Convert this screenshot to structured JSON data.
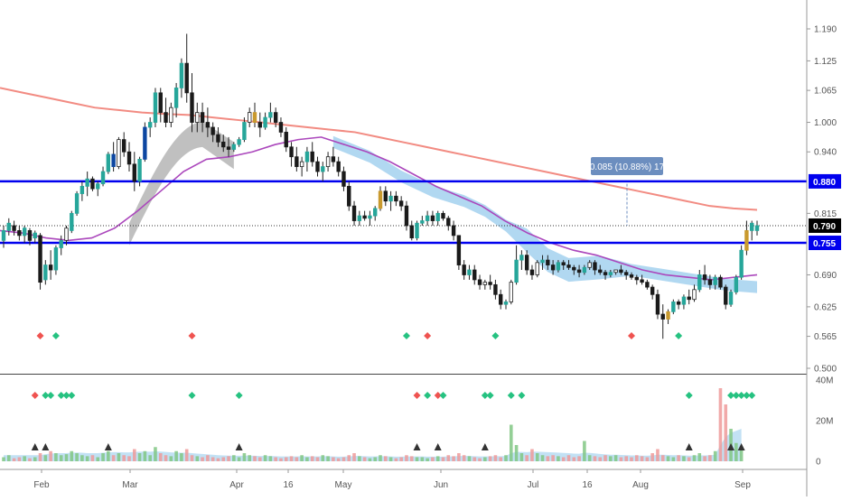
{
  "colors": {
    "up": "#26a69a",
    "down": "#1a1a1a",
    "accent_up": "#0d47a1",
    "bronze": "#c99a2e",
    "level_line": "#0000ee",
    "ma_long": "#f28b82",
    "ma_mid": "#ab47bc",
    "ribbon_grey": "#b5b5b5",
    "ribbon_blue": "#a8d4f0",
    "signal_red": "#ef5350",
    "signal_green": "#26c281",
    "label_bg": "#6c8ebf",
    "last_price_bg": "#000000"
  },
  "chart_data": {
    "type": "candlestick",
    "price_axis": {
      "ticks": [
        "1.190",
        "1.125",
        "1.065",
        "1.000",
        "0.940",
        "0.880",
        "0.815",
        "0.790",
        "0.755",
        "0.690",
        "0.625",
        "0.565",
        "0.500"
      ],
      "ylim": [
        0.5,
        1.2
      ]
    },
    "volume_axis": {
      "ticks": [
        "40M",
        "20M",
        "0"
      ],
      "ylim": [
        0,
        40
      ]
    },
    "time_axis": {
      "ticks": [
        "Feb",
        "Mar",
        "Apr",
        "16",
        "May",
        "Jun",
        "Jul",
        "16",
        "Aug",
        "Sep"
      ]
    },
    "horizontal_levels": [
      {
        "value": 0.88,
        "label": "0.880"
      },
      {
        "value": 0.755,
        "label": "0.755"
      }
    ],
    "last_price": {
      "value": 0.79,
      "label": "0.790"
    },
    "measure_label": "0.085 (10.88%) 17",
    "ohlc": [
      [
        0.76,
        0.79,
        0.745,
        0.78
      ],
      [
        0.78,
        0.805,
        0.77,
        0.795
      ],
      [
        0.79,
        0.8,
        0.77,
        0.78
      ],
      [
        0.78,
        0.79,
        0.76,
        0.77
      ],
      [
        0.77,
        0.79,
        0.755,
        0.785
      ],
      [
        0.78,
        0.785,
        0.75,
        0.76
      ],
      [
        0.765,
        0.78,
        0.755,
        0.775
      ],
      [
        0.77,
        0.775,
        0.66,
        0.675
      ],
      [
        0.68,
        0.72,
        0.67,
        0.71
      ],
      [
        0.71,
        0.74,
        0.68,
        0.7
      ],
      [
        0.7,
        0.75,
        0.69,
        0.745
      ],
      [
        0.745,
        0.77,
        0.73,
        0.76
      ],
      [
        0.76,
        0.79,
        0.75,
        0.785
      ],
      [
        0.78,
        0.82,
        0.775,
        0.815
      ],
      [
        0.815,
        0.86,
        0.81,
        0.855
      ],
      [
        0.855,
        0.88,
        0.84,
        0.87
      ],
      [
        0.87,
        0.9,
        0.85,
        0.885
      ],
      [
        0.885,
        0.89,
        0.86,
        0.865
      ],
      [
        0.865,
        0.88,
        0.85,
        0.875
      ],
      [
        0.875,
        0.91,
        0.87,
        0.9
      ],
      [
        0.9,
        0.94,
        0.895,
        0.935
      ],
      [
        0.935,
        0.96,
        0.9,
        0.91
      ],
      [
        0.91,
        0.97,
        0.905,
        0.965
      ],
      [
        0.965,
        0.98,
        0.93,
        0.94
      ],
      [
        0.94,
        0.96,
        0.9,
        0.915
      ],
      [
        0.915,
        0.94,
        0.86,
        0.88
      ],
      [
        0.88,
        0.93,
        0.87,
        0.925
      ],
      [
        0.925,
        1.0,
        0.92,
        0.99
      ],
      [
        0.99,
        1.01,
        0.97,
        1.0
      ],
      [
        1.0,
        1.07,
        0.99,
        1.06
      ],
      [
        1.06,
        1.07,
        1.0,
        1.02
      ],
      [
        1.02,
        1.05,
        0.99,
        1.0
      ],
      [
        1.0,
        1.04,
        0.99,
        1.03
      ],
      [
        1.03,
        1.08,
        1.01,
        1.07
      ],
      [
        1.07,
        1.13,
        1.05,
        1.12
      ],
      [
        1.12,
        1.18,
        1.04,
        1.06
      ],
      [
        1.06,
        1.1,
        0.98,
        1.0
      ],
      [
        1.0,
        1.04,
        0.98,
        1.02
      ],
      [
        1.02,
        1.04,
        0.98,
        1.0
      ],
      [
        1.0,
        1.03,
        0.97,
        0.99
      ],
      [
        0.99,
        1.0,
        0.96,
        0.975
      ],
      [
        0.975,
        0.99,
        0.95,
        0.96
      ],
      [
        0.96,
        0.975,
        0.94,
        0.95
      ],
      [
        0.95,
        0.97,
        0.93,
        0.945
      ],
      [
        0.945,
        0.96,
        0.94,
        0.955
      ],
      [
        0.955,
        0.97,
        0.95,
        0.965
      ],
      [
        0.965,
        1.01,
        0.96,
        1.0
      ],
      [
        1.0,
        1.03,
        0.99,
        1.02
      ],
      [
        1.02,
        1.04,
        0.99,
        1.0
      ],
      [
        1.0,
        1.02,
        0.97,
        0.99
      ],
      [
        0.99,
        1.02,
        0.985,
        1.01
      ],
      [
        1.01,
        1.04,
        1.0,
        1.02
      ],
      [
        1.02,
        1.03,
        0.99,
        1.0
      ],
      [
        1.0,
        1.01,
        0.97,
        0.98
      ],
      [
        0.98,
        0.99,
        0.94,
        0.95
      ],
      [
        0.95,
        0.96,
        0.91,
        0.93
      ],
      [
        0.93,
        0.95,
        0.9,
        0.91
      ],
      [
        0.91,
        0.93,
        0.89,
        0.92
      ],
      [
        0.92,
        0.95,
        0.9,
        0.94
      ],
      [
        0.94,
        0.96,
        0.91,
        0.92
      ],
      [
        0.92,
        0.93,
        0.89,
        0.9
      ],
      [
        0.9,
        0.92,
        0.88,
        0.91
      ],
      [
        0.91,
        0.94,
        0.9,
        0.93
      ],
      [
        0.93,
        0.95,
        0.91,
        0.92
      ],
      [
        0.92,
        0.93,
        0.89,
        0.9
      ],
      [
        0.9,
        0.91,
        0.86,
        0.87
      ],
      [
        0.87,
        0.88,
        0.82,
        0.83
      ],
      [
        0.83,
        0.84,
        0.79,
        0.8
      ],
      [
        0.8,
        0.82,
        0.79,
        0.81
      ],
      [
        0.81,
        0.82,
        0.8,
        0.805
      ],
      [
        0.805,
        0.82,
        0.79,
        0.81
      ],
      [
        0.81,
        0.83,
        0.8,
        0.825
      ],
      [
        0.825,
        0.87,
        0.82,
        0.86
      ],
      [
        0.86,
        0.87,
        0.83,
        0.84
      ],
      [
        0.84,
        0.86,
        0.82,
        0.85
      ],
      [
        0.85,
        0.86,
        0.83,
        0.84
      ],
      [
        0.84,
        0.85,
        0.82,
        0.83
      ],
      [
        0.83,
        0.84,
        0.78,
        0.79
      ],
      [
        0.79,
        0.8,
        0.76,
        0.765
      ],
      [
        0.765,
        0.8,
        0.76,
        0.795
      ],
      [
        0.795,
        0.81,
        0.79,
        0.8
      ],
      [
        0.8,
        0.82,
        0.79,
        0.81
      ],
      [
        0.81,
        0.82,
        0.79,
        0.8
      ],
      [
        0.8,
        0.82,
        0.79,
        0.815
      ],
      [
        0.815,
        0.82,
        0.8,
        0.805
      ],
      [
        0.805,
        0.81,
        0.78,
        0.79
      ],
      [
        0.79,
        0.8,
        0.76,
        0.77
      ],
      [
        0.77,
        0.77,
        0.7,
        0.71
      ],
      [
        0.71,
        0.72,
        0.68,
        0.69
      ],
      [
        0.69,
        0.71,
        0.68,
        0.7
      ],
      [
        0.7,
        0.71,
        0.67,
        0.68
      ],
      [
        0.68,
        0.69,
        0.66,
        0.67
      ],
      [
        0.67,
        0.68,
        0.66,
        0.675
      ],
      [
        0.675,
        0.69,
        0.66,
        0.67
      ],
      [
        0.67,
        0.68,
        0.64,
        0.65
      ],
      [
        0.65,
        0.66,
        0.62,
        0.63
      ],
      [
        0.63,
        0.64,
        0.62,
        0.635
      ],
      [
        0.635,
        0.68,
        0.63,
        0.675
      ],
      [
        0.675,
        0.75,
        0.67,
        0.72
      ],
      [
        0.72,
        0.74,
        0.7,
        0.73
      ],
      [
        0.73,
        0.74,
        0.69,
        0.7
      ],
      [
        0.7,
        0.71,
        0.68,
        0.69
      ],
      [
        0.69,
        0.72,
        0.685,
        0.715
      ],
      [
        0.715,
        0.73,
        0.7,
        0.72
      ],
      [
        0.72,
        0.73,
        0.7,
        0.71
      ],
      [
        0.71,
        0.72,
        0.69,
        0.7
      ],
      [
        0.7,
        0.72,
        0.695,
        0.715
      ],
      [
        0.715,
        0.72,
        0.7,
        0.71
      ],
      [
        0.71,
        0.72,
        0.7,
        0.705
      ],
      [
        0.705,
        0.71,
        0.69,
        0.7
      ],
      [
        0.7,
        0.71,
        0.685,
        0.695
      ],
      [
        0.695,
        0.71,
        0.69,
        0.705
      ],
      [
        0.705,
        0.72,
        0.7,
        0.715
      ],
      [
        0.715,
        0.72,
        0.69,
        0.7
      ],
      [
        0.7,
        0.71,
        0.69,
        0.695
      ],
      [
        0.695,
        0.7,
        0.68,
        0.69
      ],
      [
        0.69,
        0.7,
        0.685,
        0.695
      ],
      [
        0.695,
        0.7,
        0.69,
        0.7
      ],
      [
        0.7,
        0.71,
        0.69,
        0.695
      ],
      [
        0.695,
        0.7,
        0.68,
        0.69
      ],
      [
        0.69,
        0.695,
        0.68,
        0.685
      ],
      [
        0.685,
        0.69,
        0.67,
        0.68
      ],
      [
        0.68,
        0.69,
        0.67,
        0.675
      ],
      [
        0.675,
        0.68,
        0.66,
        0.665
      ],
      [
        0.665,
        0.67,
        0.64,
        0.65
      ],
      [
        0.65,
        0.66,
        0.6,
        0.61
      ],
      [
        0.61,
        0.63,
        0.56,
        0.6
      ],
      [
        0.6,
        0.62,
        0.59,
        0.615
      ],
      [
        0.615,
        0.64,
        0.61,
        0.635
      ],
      [
        0.635,
        0.64,
        0.62,
        0.63
      ],
      [
        0.63,
        0.65,
        0.62,
        0.645
      ],
      [
        0.645,
        0.66,
        0.63,
        0.64
      ],
      [
        0.64,
        0.67,
        0.635,
        0.66
      ],
      [
        0.66,
        0.7,
        0.655,
        0.69
      ],
      [
        0.69,
        0.71,
        0.67,
        0.68
      ],
      [
        0.68,
        0.69,
        0.66,
        0.67
      ],
      [
        0.67,
        0.69,
        0.66,
        0.685
      ],
      [
        0.685,
        0.69,
        0.66,
        0.665
      ],
      [
        0.665,
        0.67,
        0.62,
        0.63
      ],
      [
        0.63,
        0.66,
        0.625,
        0.655
      ],
      [
        0.655,
        0.69,
        0.65,
        0.685
      ],
      [
        0.685,
        0.75,
        0.68,
        0.74
      ],
      [
        0.74,
        0.8,
        0.73,
        0.78
      ],
      [
        0.78,
        0.8,
        0.76,
        0.795
      ],
      [
        0.78,
        0.8,
        0.77,
        0.79
      ]
    ],
    "volume_millions": [
      2,
      3,
      1.5,
      2,
      2.5,
      1.5,
      2,
      4,
      3,
      5,
      4,
      3,
      3.5,
      5,
      4,
      3,
      2.5,
      3,
      2,
      4,
      5,
      3,
      4,
      3,
      2.5,
      6,
      4,
      5,
      3,
      7,
      4,
      3,
      2.5,
      5,
      4,
      6,
      3,
      2.5,
      2,
      3,
      2,
      1.5,
      2,
      2.5,
      3,
      2,
      4,
      3,
      2.5,
      2,
      3,
      2.5,
      2,
      1.5,
      2,
      2.5,
      2,
      3,
      2,
      2.5,
      2,
      3,
      2.5,
      2,
      1.5,
      2,
      3,
      4,
      2.5,
      2,
      1.5,
      2,
      3,
      2.5,
      2,
      1.5,
      2,
      3,
      2.5,
      2,
      2,
      1.5,
      2,
      2.5,
      2,
      3,
      2.5,
      4,
      3,
      2.5,
      2,
      1.5,
      2,
      2.5,
      3,
      2,
      3,
      18,
      8,
      4,
      3,
      6,
      4,
      3,
      2.5,
      3,
      2.5,
      2,
      3,
      2,
      2.5,
      10,
      3,
      2.5,
      2,
      3,
      2.5,
      3,
      2,
      2.5,
      2,
      3,
      2.5,
      2,
      4,
      6,
      3,
      2.5,
      2,
      3,
      2.5,
      2,
      3,
      4,
      2.5,
      3,
      5,
      36,
      28,
      16,
      9,
      7
    ],
    "volume_avg_millions": [
      3,
      3,
      3,
      3,
      3,
      3,
      3,
      3,
      3.5,
      3.8,
      4,
      4,
      4,
      4.2,
      4.3,
      4.2,
      4,
      4,
      4,
      4.2,
      4.4,
      4.5,
      4.5,
      4.4,
      4.4,
      4.6,
      4.7,
      4.8,
      4.7,
      4.9,
      4.8,
      4.6,
      4.4,
      4.3,
      4.2,
      4.2,
      4,
      3.8,
      3.6,
      3.4,
      3.2,
      3,
      2.9,
      2.8,
      2.8,
      2.7,
      2.8,
      2.8,
      2.7,
      2.6,
      2.6,
      2.6,
      2.5,
      2.4,
      2.4,
      2.4,
      2.4,
      2.5,
      2.4,
      2.4,
      2.4,
      2.5,
      2.5,
      2.4,
      2.3,
      2.3,
      2.4,
      2.6,
      2.6,
      2.5,
      2.4,
      2.4,
      2.5,
      2.5,
      2.4,
      2.3,
      2.3,
      2.4,
      2.4,
      2.4,
      2.4,
      2.3,
      2.3,
      2.3,
      2.3,
      2.4,
      2.4,
      2.6,
      2.6,
      2.6,
      2.5,
      2.4,
      2.4,
      2.4,
      2.5,
      2.5,
      2.6,
      4,
      4.6,
      4.6,
      4.5,
      4.7,
      4.7,
      4.6,
      4.5,
      4.4,
      4.3,
      4.1,
      4,
      3.8,
      3.7,
      4.2,
      4.1,
      3.9,
      3.6,
      3.4,
      3.2,
      3.2,
      3.1,
      3,
      2.9,
      2.9,
      2.8,
      2.8,
      2.9,
      3.2,
      3.2,
      3.1,
      3,
      3,
      2.9,
      2.8,
      2.8,
      2.9,
      2.9,
      3,
      3.2,
      8,
      12,
      14,
      15,
      16
    ],
    "ma_long_samples": [
      1.07,
      1.06,
      1.05,
      1.04,
      1.03,
      1.025,
      1.02,
      1.017,
      1.015,
      1.01,
      1.005,
      1.0,
      0.995,
      0.99,
      0.985,
      0.98,
      0.97,
      0.96,
      0.95,
      0.94,
      0.93,
      0.92,
      0.91,
      0.9,
      0.89,
      0.88,
      0.87,
      0.86,
      0.85,
      0.84,
      0.83,
      0.825,
      0.822
    ],
    "ma_mid_samples": [
      0.78,
      0.775,
      0.765,
      0.76,
      0.765,
      0.785,
      0.82,
      0.86,
      0.9,
      0.925,
      0.93,
      0.94,
      0.955,
      0.965,
      0.97,
      0.955,
      0.94,
      0.92,
      0.895,
      0.87,
      0.85,
      0.83,
      0.8,
      0.775,
      0.755,
      0.74,
      0.73,
      0.715,
      0.7,
      0.69,
      0.685,
      0.68,
      0.685,
      0.69
    ],
    "signals_price_pane": {
      "red": [
        7,
        36,
        81,
        120
      ],
      "green": [
        10,
        77,
        94,
        129
      ]
    },
    "signals_volume_pane": {
      "red": [
        6,
        79,
        83
      ],
      "green": [
        8,
        9,
        11,
        12,
        13,
        36,
        45,
        81,
        84,
        92,
        93,
        97,
        99,
        131,
        139,
        140,
        141,
        142,
        143
      ]
    },
    "volume_triangles": [
      6,
      8,
      20,
      45,
      79,
      83,
      92,
      131,
      139,
      141
    ]
  }
}
